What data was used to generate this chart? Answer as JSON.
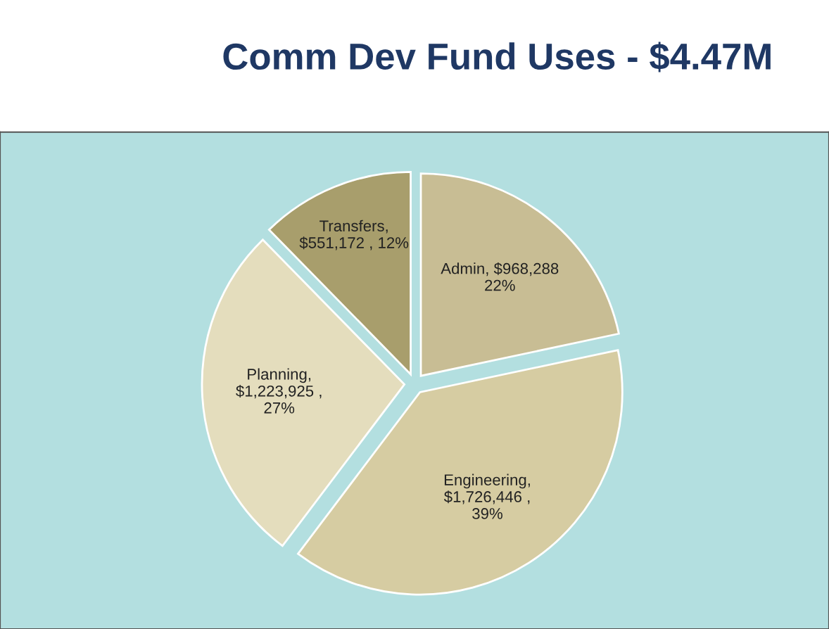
{
  "chart_data": {
    "type": "pie",
    "title": "Comm Dev Fund Uses - $4.47M",
    "categories": [
      "Admin",
      "Engineering",
      "Planning",
      "Transfers"
    ],
    "values": [
      968288,
      1726446,
      1223925,
      551172
    ],
    "colors": [
      "#c8bd94",
      "#d6cca2",
      "#e4ddbd",
      "#a89e6c"
    ],
    "value_labels": [
      ", $968,288\n22%",
      ",\n$1,726,446 ,\n39%",
      ",\n$1,223,925 ,\n27%",
      ",\n$551,172 , 12%"
    ],
    "legend": false
  }
}
